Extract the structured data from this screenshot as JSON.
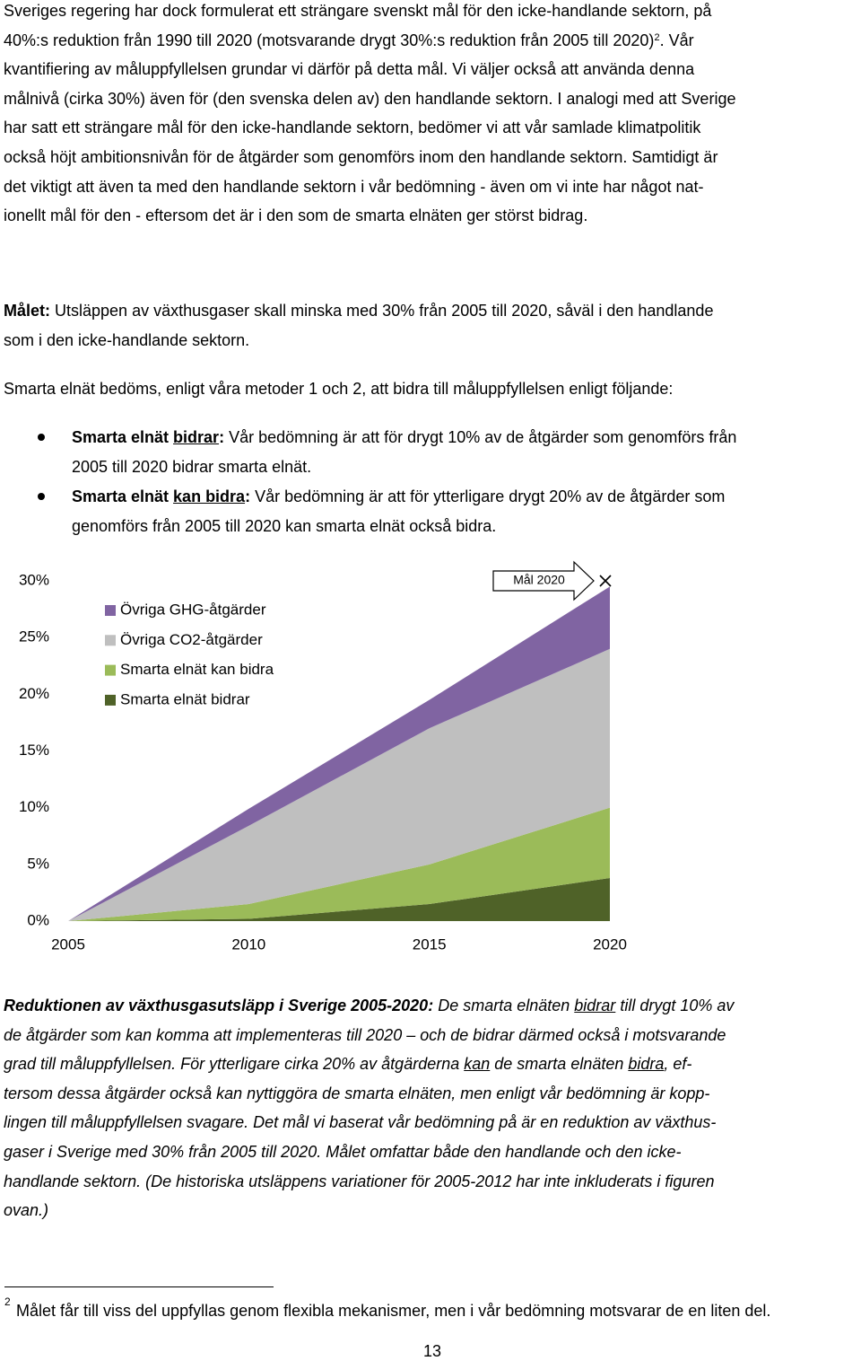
{
  "body": {
    "paragraph_1": [
      "Sveriges regering har dock formulerat ett strängare svenskt mål för den icke-handlande sektorn, på",
      [
        "40%:s reduktion från 1990 till 2020 (motsvarande drygt 30%:s reduktion från 2005 till 2020)",
        {
          "text": "2",
          "sup": true
        },
        ". Vår"
      ],
      "kvantifiering av måluppfyllelsen grundar vi därför på detta mål. Vi väljer också att använda denna",
      "målnivå (cirka 30%) även för (den svenska delen av) den handlande sektorn. I analogi med att Sverige",
      "har satt ett strängare mål för den icke-handlande sektorn, bedömer vi att vår samlade klimatpolitik",
      "också höjt ambitionsnivån för de åtgärder som genomförs inom den handlande sektorn. Samtidigt är",
      "det viktigt att även ta med den handlande sektorn i vår bedömning - även om vi inte har något nat-",
      "ionellt mål för den - eftersom det är i den som de smarta elnäten ger störst bidrag."
    ],
    "goal": [
      [
        {
          "text": "Målet:",
          "bold": true
        },
        " Utsläppen av växthusgaser skall minska med 30% från 2005 till 2020, såväl i den handlande"
      ],
      "som i den icke-handlande sektorn."
    ],
    "intro": [
      "Smarta elnät bedöms, enligt våra metoder 1 och 2, att bidra till måluppfyllelsen enligt följande:"
    ],
    "bullets": [
      [
        [
          {
            "text": "Smarta elnät ",
            "bold": true
          },
          {
            "text": "bidrar",
            "bold": true,
            "underline": true
          },
          {
            "text": ":",
            "bold": true
          },
          " Vår bedömning är att för drygt 10% av de åtgärder som genomförs från"
        ],
        "2005 till 2020 bidrar smarta elnät."
      ],
      [
        [
          {
            "text": "Smarta elnät ",
            "bold": true
          },
          {
            "text": "kan bidra",
            "bold": true,
            "underline": true
          },
          {
            "text": ":",
            "bold": true
          },
          " Vår bedömning är att för ytterligare drygt 20% av de åtgärder som"
        ],
        "genomförs från 2005 till 2020 kan smarta elnät också bidra."
      ]
    ],
    "caption": [
      [
        {
          "text": "Reduktionen av växthusgasutsläpp i Sverige 2005-2020:",
          "bold": true
        },
        " De smarta elnäten ",
        {
          "text": "bidrar",
          "underline": true
        },
        " till drygt 10% av"
      ],
      "de åtgärder som kan komma att implementeras till 2020 – och de bidrar därmed också i motsvarande",
      [
        "grad till måluppfyllelsen. För ytterligare cirka 20% av åtgärderna ",
        {
          "text": "kan",
          "underline": true
        },
        " de smarta elnäten ",
        {
          "text": "bidra",
          "underline": true
        },
        ", ef-"
      ],
      "tersom dessa åtgärder också kan nyttiggöra de smarta elnäten, men enligt vår bedömning är kopp-",
      "lingen till måluppfyllelsen svagare. Det mål vi baserat vår bedömning på är en reduktion av växthus-",
      "gaser i Sverige med 30% från 2005 till 2020. Målet omfattar både den handlande och den icke-",
      "handlande sektorn. (De historiska utsläppens variationer för 2005-2012 har inte inkluderats i figuren",
      "ovan.)"
    ],
    "footnote": {
      "number": "2",
      "text": "Målet får till viss del uppfyllas genom flexibla mekanismer, men i vår bedömning motsvarar de en liten del."
    },
    "page_number": "13"
  },
  "chart_data": {
    "type": "stacked_area",
    "x": [
      2005,
      2010,
      2015,
      2020
    ],
    "xlim": [
      2005,
      2020
    ],
    "xticks": [
      2005,
      2010,
      2015,
      2020
    ],
    "ylim": [
      0,
      30
    ],
    "yticks": [
      {
        "value": 0,
        "label": "0%"
      },
      {
        "value": 5,
        "label": "5%"
      },
      {
        "value": 10,
        "label": "10%"
      },
      {
        "value": 15,
        "label": "15%"
      },
      {
        "value": 20,
        "label": "20%"
      },
      {
        "value": 25,
        "label": "25%"
      },
      {
        "value": 30,
        "label": "30%"
      }
    ],
    "series": [
      {
        "name": "Smarta elnät bidrar",
        "color": "#4f6228",
        "values": [
          0,
          0.2,
          1.5,
          3.8
        ]
      },
      {
        "name": "Smarta elnät kan bidra",
        "color": "#9bbb59",
        "values": [
          0,
          1.3,
          3.5,
          6.2
        ]
      },
      {
        "name": "Övriga CO2-åtgärder",
        "color": "#bfbfbf",
        "values": [
          0,
          6.9,
          12,
          14
        ]
      },
      {
        "name": "Övriga GHG-åtgärder",
        "color": "#8064a2",
        "values": [
          0,
          1.5,
          2.5,
          5.5
        ]
      }
    ],
    "target": {
      "label": "Mål 2020",
      "value": 30
    }
  }
}
